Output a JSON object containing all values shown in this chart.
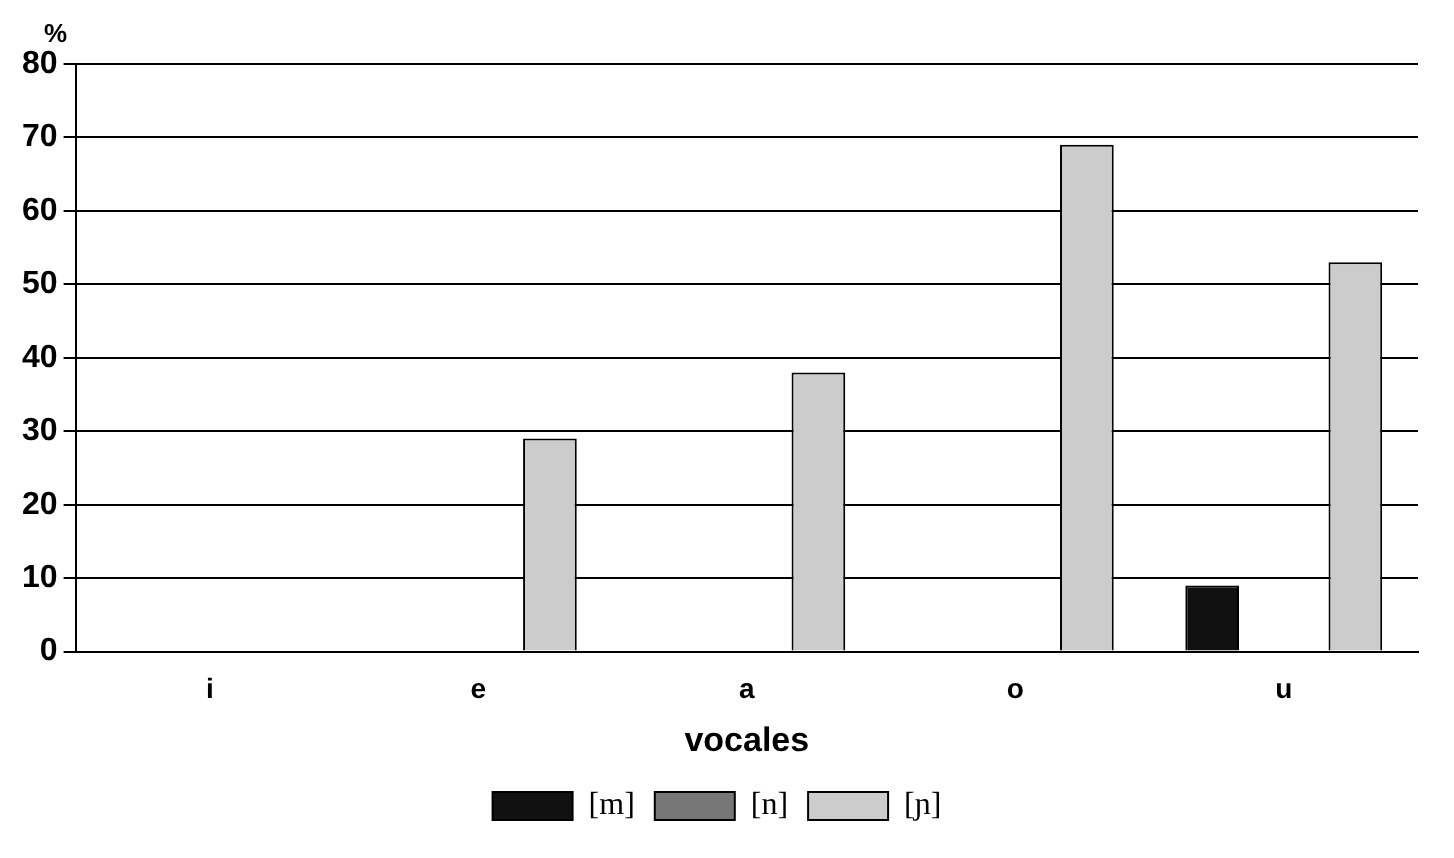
{
  "chart_data": {
    "type": "bar",
    "xlabel": "vocales",
    "ylabel": "%",
    "categories": [
      "i",
      "e",
      "a",
      "o",
      "u"
    ],
    "series": [
      {
        "name": "[m]",
        "color": "#111111",
        "values": [
          0,
          0,
          0,
          0,
          9
        ]
      },
      {
        "name": "[n]",
        "color": "#777777",
        "values": [
          0,
          0,
          0,
          0,
          0
        ]
      },
      {
        "name": "[ɲ]",
        "color": "#cccccc",
        "values": [
          0,
          29,
          38,
          69,
          53
        ]
      }
    ],
    "ylim": [
      0,
      80
    ],
    "yticks": [
      0,
      10,
      20,
      30,
      40,
      50,
      60,
      70,
      80
    ],
    "grid": "y",
    "legend": "bottom"
  }
}
